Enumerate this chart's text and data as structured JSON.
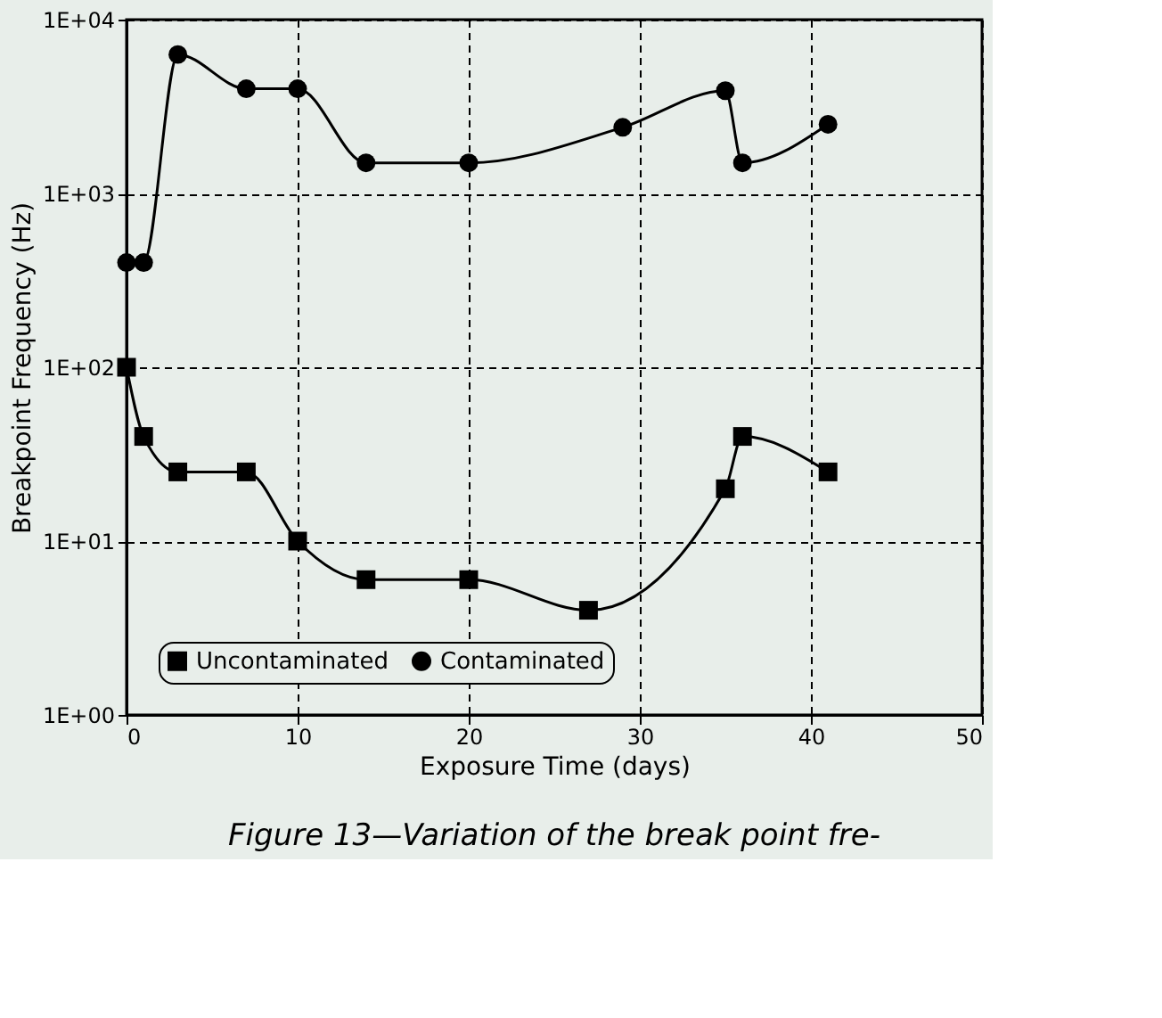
{
  "chart_data": {
    "type": "line",
    "xlabel": "Exposure Time  (days)",
    "ylabel": "Breakpoint Frequency  (Hz)",
    "annotations": [
      "Figure 13—Variation of the break point fre-"
    ],
    "log": "y",
    "grid": true,
    "legend": "bottom left",
    "line_style": "solid",
    "xlim": [
      0,
      50
    ],
    "xticks": [
      0,
      10,
      20,
      30,
      40,
      50
    ],
    "ylim": [
      1,
      10000
    ],
    "yticks": [
      {
        "value": 1,
        "label": "1E+00"
      },
      {
        "value": 10,
        "label": "1E+01"
      },
      {
        "value": 100,
        "label": "1E+02"
      },
      {
        "value": 1000,
        "label": "1E+03"
      },
      {
        "value": 10000,
        "label": "1E+04"
      }
    ],
    "series": [
      {
        "name": "Uncontaminated",
        "color": "#000000",
        "marker": "square",
        "x": [
          0,
          1,
          3,
          7,
          10,
          14,
          20,
          27,
          35,
          36,
          41
        ],
        "values": [
          100,
          40,
          25,
          25,
          10,
          6,
          6,
          4,
          20,
          40,
          25
        ]
      },
      {
        "name": "Contaminated",
        "color": "#000000",
        "marker": "circle",
        "x": [
          0,
          1,
          3,
          7,
          10,
          14,
          20,
          29,
          35,
          36,
          41
        ],
        "values": [
          400,
          400,
          6300,
          4000,
          4000,
          1500,
          1500,
          2400,
          3900,
          1500,
          2500
        ]
      }
    ]
  }
}
